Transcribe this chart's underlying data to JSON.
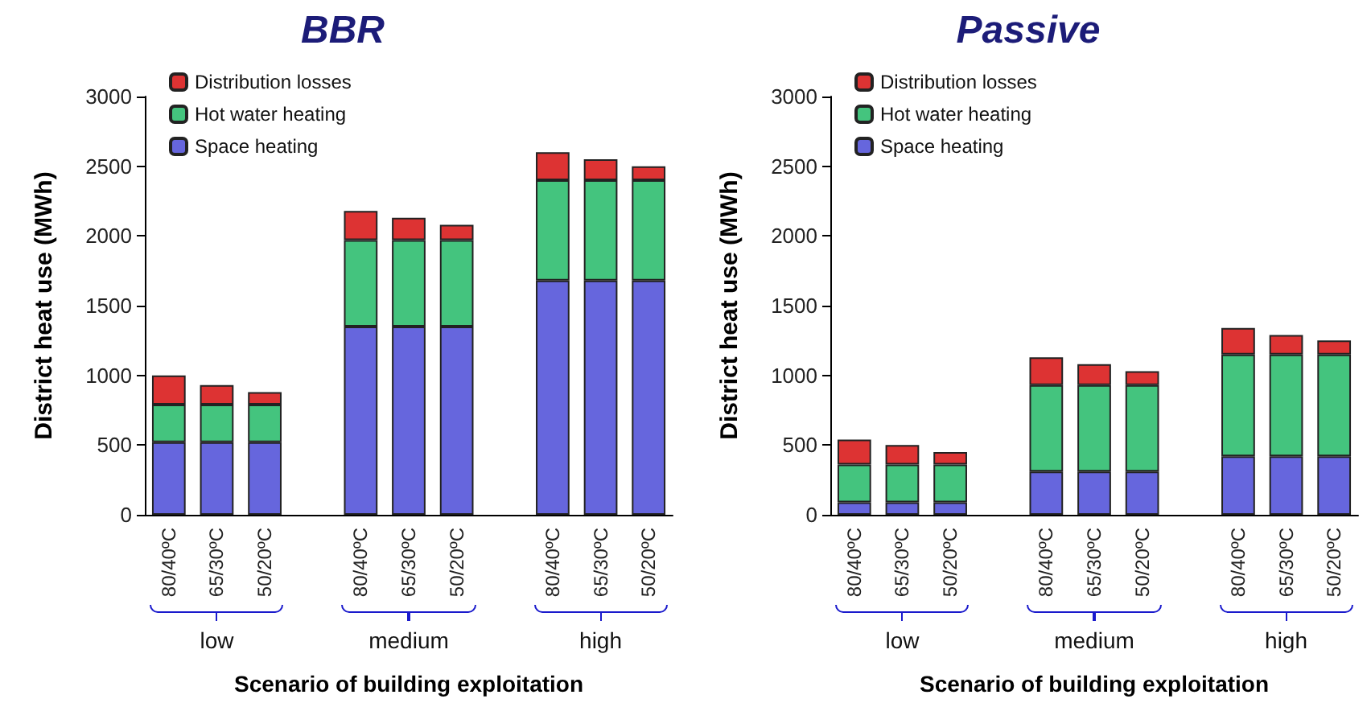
{
  "chart_data": [
    {
      "type": "bar",
      "title": "BBR",
      "ylabel": "District heat use (MWh)",
      "xlabel": "Scenario of building exploitation",
      "categories": [
        "80/40ºC",
        "65/30ºC",
        "50/20ºC",
        null,
        "80/40ºC",
        "65/30ºC",
        "50/20ºC",
        null,
        "80/40ºC",
        "65/30ºC",
        "50/20ºC"
      ],
      "stacked": true,
      "legend": "top left",
      "grid": false,
      "ylim": [
        0,
        3000
      ],
      "yticks": [
        0,
        500,
        1000,
        1500,
        2000,
        2500,
        3000
      ],
      "annotations": [
        "low",
        "medium",
        "high"
      ],
      "series": [
        {
          "name": "Space heating",
          "color": "#6666dd",
          "values": [
            520,
            520,
            520,
            null,
            1350,
            1350,
            1350,
            null,
            1680,
            1680,
            1680
          ]
        },
        {
          "name": "Hot water heating",
          "color": "#44c47e",
          "values": [
            270,
            270,
            270,
            null,
            620,
            620,
            620,
            null,
            720,
            720,
            720
          ]
        },
        {
          "name": "Distribution losses",
          "color": "#dd3333",
          "values": [
            210,
            140,
            90,
            null,
            210,
            160,
            110,
            null,
            200,
            150,
            100
          ]
        }
      ]
    },
    {
      "type": "bar",
      "title": "Passive",
      "ylabel": "District heat use (MWh)",
      "xlabel": "Scenario of building exploitation",
      "categories": [
        "80/40ºC",
        "65/30ºC",
        "50/20ºC",
        null,
        "80/40ºC",
        "65/30ºC",
        "50/20ºC",
        null,
        "80/40ºC",
        "65/30ºC",
        "50/20ºC"
      ],
      "stacked": true,
      "legend": "top left",
      "grid": false,
      "ylim": [
        0,
        3000
      ],
      "yticks": [
        0,
        500,
        1000,
        1500,
        2000,
        2500,
        3000
      ],
      "annotations": [
        "low",
        "medium",
        "high"
      ],
      "series": [
        {
          "name": "Space heating",
          "color": "#6666dd",
          "values": [
            90,
            90,
            90,
            null,
            310,
            310,
            310,
            null,
            420,
            420,
            420
          ]
        },
        {
          "name": "Hot water heating",
          "color": "#44c47e",
          "values": [
            270,
            270,
            270,
            null,
            620,
            620,
            620,
            null,
            730,
            730,
            730
          ]
        },
        {
          "name": "Distribution losses",
          "color": "#dd3333",
          "values": [
            180,
            140,
            90,
            null,
            200,
            150,
            100,
            null,
            190,
            140,
            100
          ]
        }
      ]
    }
  ]
}
